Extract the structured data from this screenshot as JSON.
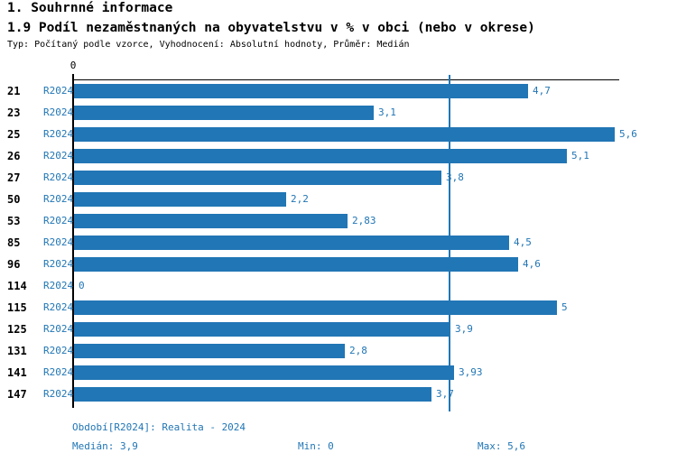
{
  "header": {
    "section_title": "1. Souhrnné informace",
    "chart_title": "1.9 Podíl nezaměstnaných na obyvatelstvu v % v obci (nebo v okrese)",
    "subtitle": "Typ: Počítaný podle vzorce, Vyhodnocení: Absolutní hodnoty, Průměr: Medián"
  },
  "chart_data": {
    "type": "bar",
    "orientation": "horizontal",
    "title": "1.9 Podíl nezaměstnaných na obyvatelstvu v % v obci (nebo v okrese)",
    "x_zero_label": "0",
    "xlim": [
      0,
      5.6
    ],
    "grid": false,
    "categories": [
      "21",
      "23",
      "25",
      "26",
      "27",
      "50",
      "53",
      "85",
      "96",
      "114",
      "115",
      "125",
      "131",
      "141",
      "147"
    ],
    "period_label": "R2024",
    "values": [
      4.7,
      3.1,
      5.6,
      5.1,
      3.8,
      2.2,
      2.83,
      4.5,
      4.6,
      0,
      5,
      3.9,
      2.8,
      3.93,
      3.7
    ],
    "value_labels": [
      "4,7",
      "3,1",
      "5,6",
      "5,1",
      "3,8",
      "2,2",
      "2,83",
      "4,5",
      "4,6",
      "0",
      "5",
      "3,9",
      "2,8",
      "3,93",
      "3,7"
    ],
    "median_value": 3.9,
    "bar_color": "#2176b5",
    "median_line_color": "#2176b5",
    "axis_color": "#000000"
  },
  "footer": {
    "period": "Období[R2024]: Realita - 2024",
    "median": "Medián: 3,9",
    "min": "Min: 0",
    "max": "Max: 5,6"
  }
}
